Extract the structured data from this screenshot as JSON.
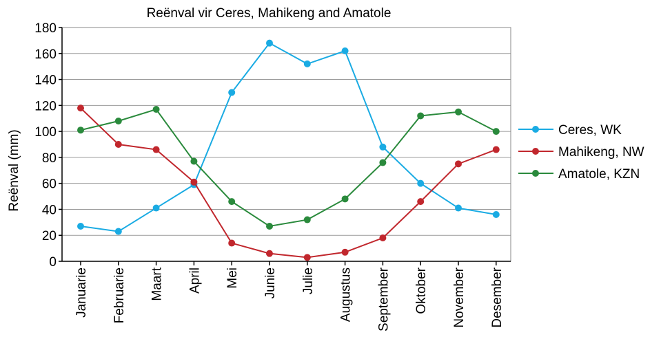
{
  "chart_data": {
    "type": "line",
    "title": "Reënval vir Ceres, Mahikeng and Amatole",
    "xlabel": "",
    "ylabel": "Reënval (mm)",
    "ylim": [
      0,
      180
    ],
    "yticks": [
      0,
      20,
      40,
      60,
      80,
      100,
      120,
      140,
      160,
      180
    ],
    "grid": true,
    "legend_position": "right",
    "categories": [
      "Januarie",
      "Februarie",
      "Maart",
      "April",
      "Mei",
      "Junie",
      "Julie",
      "Augustus",
      "September",
      "Oktober",
      "November",
      "Desember"
    ],
    "series": [
      {
        "name": "Ceres, WK",
        "color": "#1aabe3",
        "values": [
          27,
          23,
          41,
          59,
          130,
          168,
          152,
          162,
          88,
          60,
          41,
          36
        ]
      },
      {
        "name": "Mahikeng, NW",
        "color": "#c1272d",
        "values": [
          118,
          90,
          86,
          61,
          14,
          6,
          3,
          7,
          18,
          46,
          75,
          86
        ]
      },
      {
        "name": "Amatole, KZN",
        "color": "#2a8a3c",
        "values": [
          101,
          108,
          117,
          77,
          46,
          27,
          32,
          48,
          76,
          112,
          115,
          100
        ]
      }
    ]
  }
}
